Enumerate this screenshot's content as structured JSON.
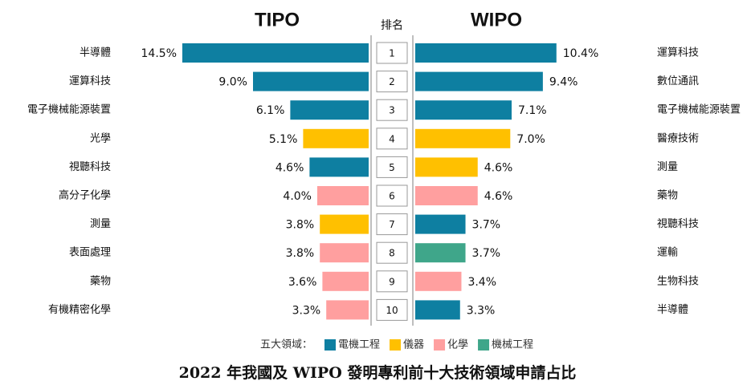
{
  "chart_data": {
    "type": "butterfly",
    "title": "2022 年我國及 WIPO 發明專利前十大技術領域申請占比",
    "rank_label": "排名",
    "ranks": [
      1,
      2,
      3,
      4,
      5,
      6,
      7,
      8,
      9,
      10
    ],
    "legend_label": "五大領域：",
    "fields": [
      {
        "name": "電機工程",
        "color": "#0e7fa1"
      },
      {
        "name": "儀器",
        "color": "#ffc000"
      },
      {
        "name": "化學",
        "color": "#ff9f9f"
      },
      {
        "name": "機械工程",
        "color": "#3fa68a"
      }
    ],
    "panels": [
      {
        "name": "TIPO",
        "side": "left",
        "xlim": [
          0,
          15
        ],
        "categories": [
          "半導體",
          "運算科技",
          "電子機械能源裝置",
          "光學",
          "視聽科技",
          "高分子化學",
          "測量",
          "表面處理",
          "藥物",
          "有機精密化學"
        ],
        "values": [
          14.5,
          9.0,
          6.1,
          5.1,
          4.6,
          4.0,
          3.8,
          3.8,
          3.6,
          3.3
        ],
        "value_labels": [
          "14.5%",
          "9.0%",
          "6.1%",
          "5.1%",
          "4.6%",
          "4.0%",
          "3.8%",
          "3.8%",
          "3.6%",
          "3.3%"
        ],
        "colors": [
          "#0e7fa1",
          "#0e7fa1",
          "#0e7fa1",
          "#ffc000",
          "#0e7fa1",
          "#ff9f9f",
          "#ffc000",
          "#ff9f9f",
          "#ff9f9f",
          "#ff9f9f"
        ]
      },
      {
        "name": "WIPO",
        "side": "right",
        "xlim": [
          0,
          14.2
        ],
        "categories": [
          "運算科技",
          "數位通訊",
          "電子機械能源裝置",
          "醫療技術",
          "測量",
          "藥物",
          "視聽科技",
          "運輸",
          "生物科技",
          "半導體"
        ],
        "values": [
          10.4,
          9.4,
          7.1,
          7.0,
          4.6,
          4.6,
          3.7,
          3.7,
          3.4,
          3.3
        ],
        "value_labels": [
          "10.4%",
          "9.4%",
          "7.1%",
          "7.0%",
          "4.6%",
          "4.6%",
          "3.7%",
          "3.7%",
          "3.4%",
          "3.3%"
        ],
        "colors": [
          "#0e7fa1",
          "#0e7fa1",
          "#0e7fa1",
          "#ffc000",
          "#ffc000",
          "#ff9f9f",
          "#0e7fa1",
          "#3fa68a",
          "#ff9f9f",
          "#0e7fa1"
        ]
      }
    ]
  }
}
